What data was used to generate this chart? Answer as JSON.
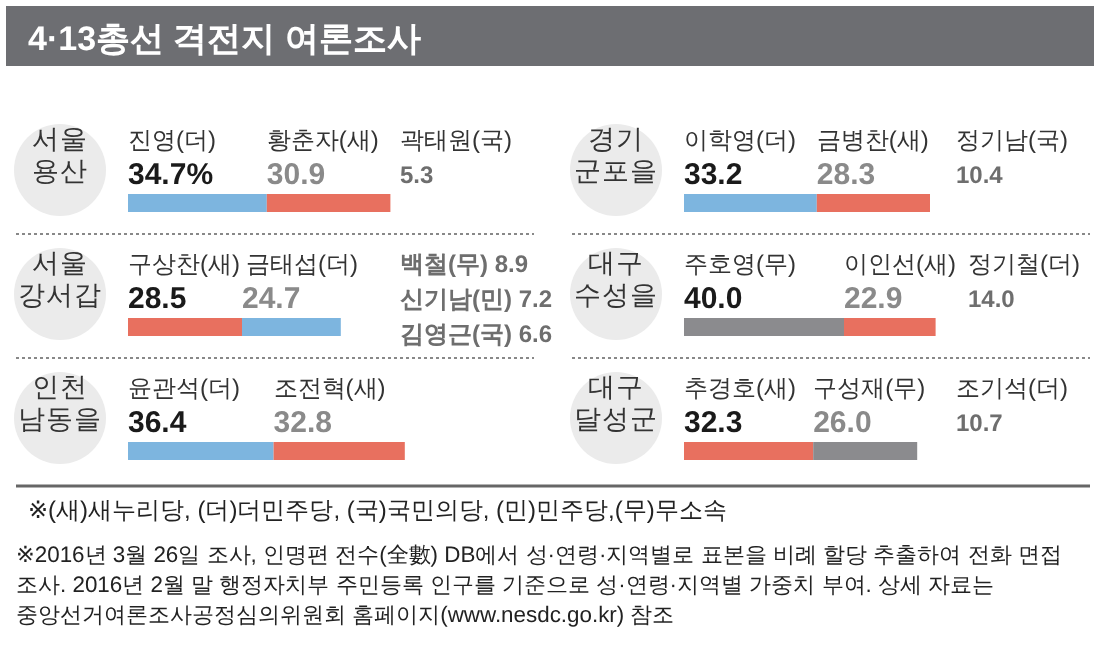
{
  "chart_data": [
    {
      "type": "other",
      "title": "4·13총선 격전지 여론조사"
    },
    {
      "type": "bar",
      "orientation": "horizontal",
      "stacked": true,
      "title": "서울 용산",
      "categories": [
        null
      ],
      "series": [
        {
          "name": "진영(더)",
          "color": "#7db5df",
          "values": [
            34.7
          ],
          "value_labels": [
            "34.7%"
          ]
        },
        {
          "name": "황춘자(새)",
          "color": "#e8705f",
          "values": [
            30.9
          ],
          "value_labels": [
            "30.9"
          ]
        }
      ],
      "annotations": [
        "곽태원(국)",
        "5.3"
      ]
    },
    {
      "type": "bar",
      "orientation": "horizontal",
      "stacked": true,
      "title": "경기 군포을",
      "categories": [
        null
      ],
      "series": [
        {
          "name": "이학영(더)",
          "color": "#7db5df",
          "values": [
            33.2
          ],
          "value_labels": [
            "33.2"
          ]
        },
        {
          "name": "금병찬(새)",
          "color": "#e8705f",
          "values": [
            28.3
          ],
          "value_labels": [
            "28.3"
          ]
        }
      ],
      "annotations": [
        "정기남(국)",
        "10.4"
      ]
    },
    {
      "type": "bar",
      "orientation": "horizontal",
      "stacked": true,
      "title": "서울 강서갑",
      "categories": [
        null
      ],
      "series": [
        {
          "name": "구상찬(새)",
          "color": "#e8705f",
          "values": [
            28.5
          ],
          "value_labels": [
            "28.5"
          ]
        },
        {
          "name": "금태섭(더)",
          "color": "#7db5df",
          "values": [
            24.7
          ],
          "value_labels": [
            "24.7"
          ]
        }
      ],
      "annotations": [
        "백철(무) 8.9",
        "신기남(민) 7.2",
        "김영근(국) 6.6"
      ]
    },
    {
      "type": "bar",
      "orientation": "horizontal",
      "stacked": true,
      "title": "대구 수성을",
      "categories": [
        null
      ],
      "series": [
        {
          "name": "주호영(무)",
          "color": "#8b8b8e",
          "values": [
            40.0
          ],
          "value_labels": [
            "40.0"
          ]
        },
        {
          "name": "이인선(새)",
          "color": "#e8705f",
          "values": [
            22.9
          ],
          "value_labels": [
            "22.9"
          ]
        }
      ],
      "annotations": [
        "정기철(더)",
        "14.0"
      ]
    },
    {
      "type": "bar",
      "orientation": "horizontal",
      "stacked": true,
      "title": "인천 남동을",
      "categories": [
        null
      ],
      "series": [
        {
          "name": "윤관석(더)",
          "color": "#7db5df",
          "values": [
            36.4
          ],
          "value_labels": [
            "36.4"
          ]
        },
        {
          "name": "조전혁(새)",
          "color": "#e8705f",
          "values": [
            32.8
          ],
          "value_labels": [
            "32.8"
          ]
        }
      ]
    },
    {
      "type": "bar",
      "orientation": "horizontal",
      "stacked": true,
      "title": "대구 달성군",
      "categories": [
        null
      ],
      "series": [
        {
          "name": "추경호(새)",
          "color": "#e8705f",
          "values": [
            32.3
          ],
          "value_labels": [
            "32.3"
          ]
        },
        {
          "name": "구성재(무)",
          "color": "#8b8b8e",
          "values": [
            26.0
          ],
          "value_labels": [
            "26.0"
          ]
        }
      ],
      "annotations": [
        "조기석(더)",
        "10.7"
      ]
    },
    {
      "type": "other",
      "annotations": [
        "※(새)새누리당, (더)더민주당, (국)국민의당, (민)민주당,(무)무소속",
        "※2016년 3월 26일 조사, 인명편 전수(全數) DB에서 성·연령·지역별로 표본을 비례 할당 추출하여 전화 면접 조사. 2016년 2월 말 행정자치부 주민등록 인구를 기준으로 성·연령·지역별 가중치 부여. 상세 자료는 중앙선거여론조사공정심의위원회 홈페이지(www.nesdc.go.kr) 참조"
      ]
    }
  ]
}
